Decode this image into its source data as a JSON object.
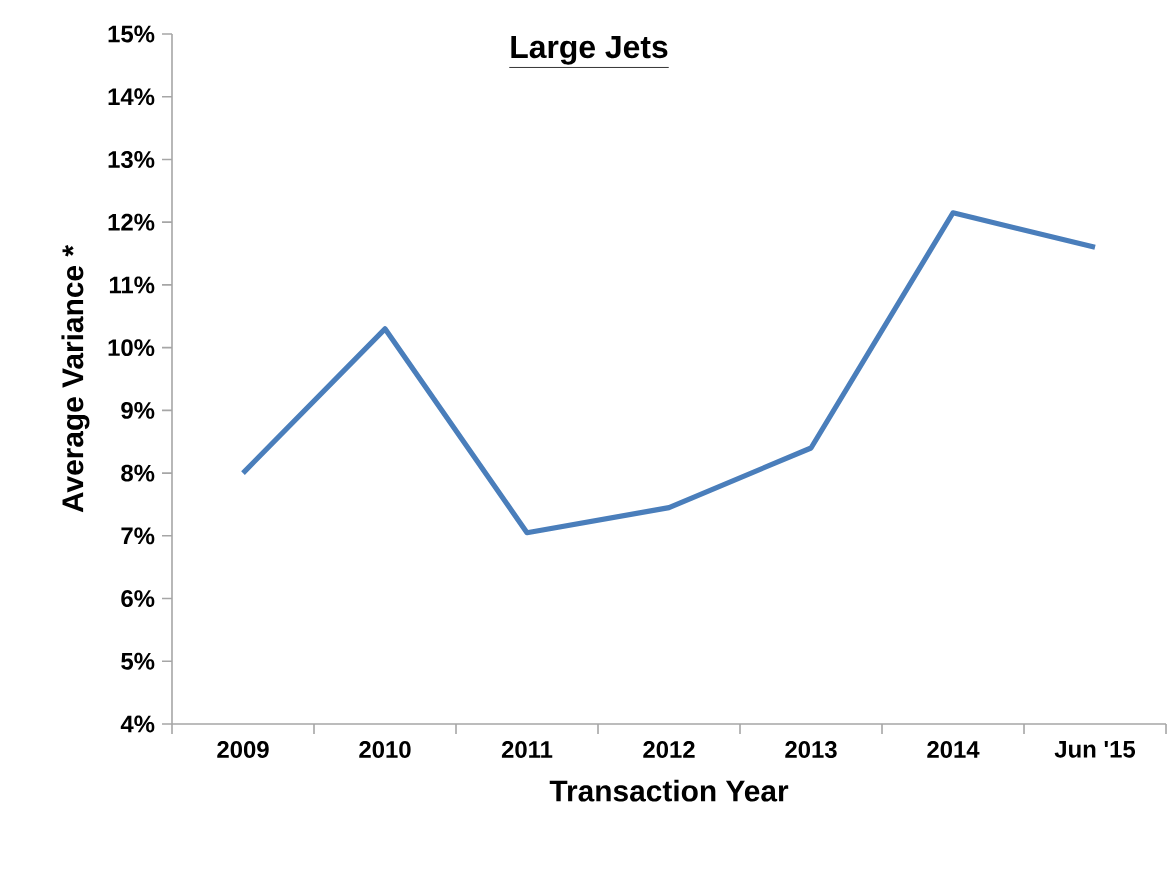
{
  "chart_data": {
    "type": "line",
    "title": "Large Jets",
    "xlabel": "Transaction Year",
    "ylabel": "Average Variance *",
    "categories": [
      "2009",
      "2010",
      "2011",
      "2012",
      "2013",
      "2014",
      "Jun '15"
    ],
    "series": [
      {
        "color": "#4a7ebb",
        "values": [
          8.0,
          10.3,
          7.05,
          7.45,
          8.4,
          12.15,
          11.6
        ]
      }
    ],
    "ylim": [
      4,
      15
    ],
    "yticks": [
      {
        "value": 4,
        "label": "4%"
      },
      {
        "value": 5,
        "label": "5%"
      },
      {
        "value": 6,
        "label": "6%"
      },
      {
        "value": 7,
        "label": "7%"
      },
      {
        "value": 8,
        "label": "8%"
      },
      {
        "value": 9,
        "label": "9%"
      },
      {
        "value": 10,
        "label": "10%"
      },
      {
        "value": 11,
        "label": "11%"
      },
      {
        "value": 12,
        "label": "12%"
      },
      {
        "value": 13,
        "label": "13%"
      },
      {
        "value": 14,
        "label": "14%"
      },
      {
        "value": 15,
        "label": "15%"
      }
    ],
    "grid": false,
    "marker": "none",
    "line_style": "solid"
  }
}
